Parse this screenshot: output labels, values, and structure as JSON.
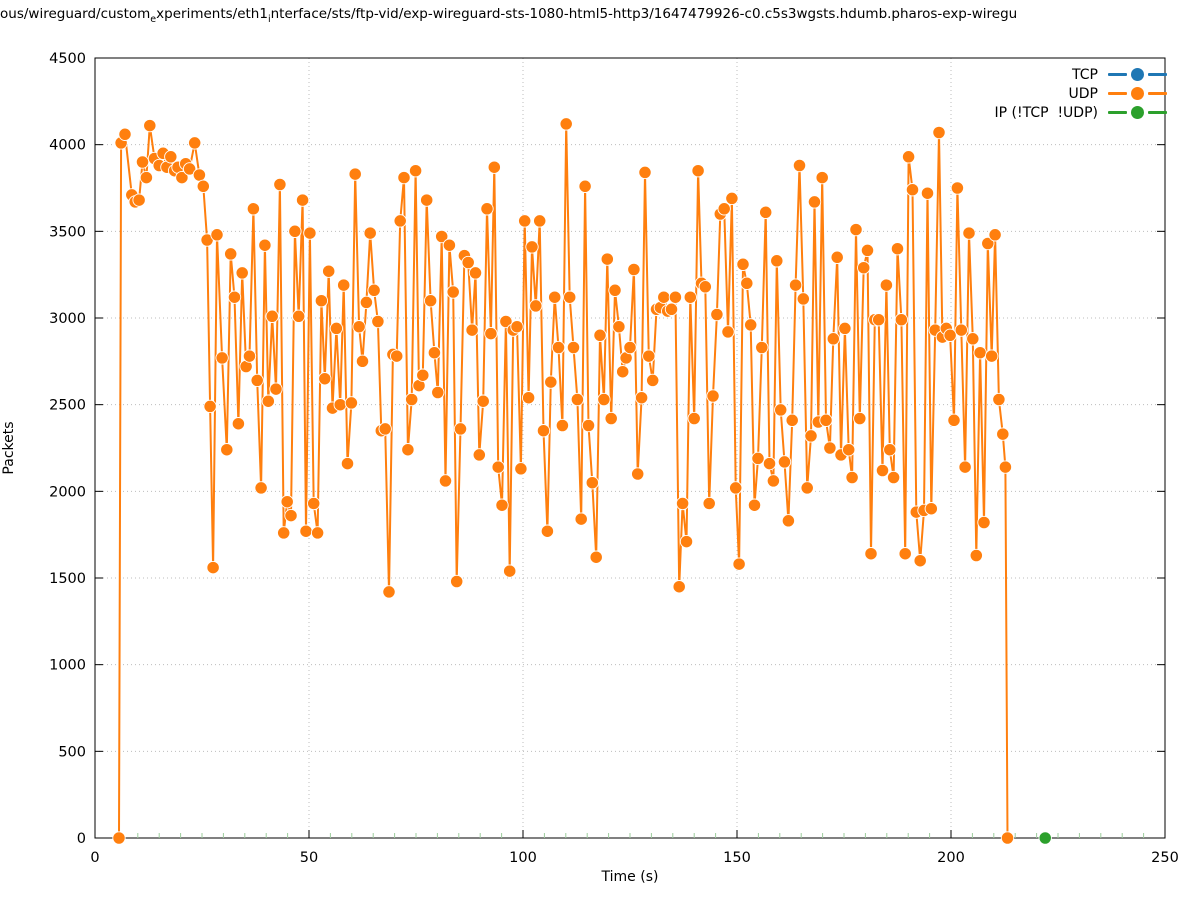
{
  "title": {
    "part1": "ous/wireguard/custom",
    "sub1": "e",
    "part2": "xperiments/eth1",
    "sub2": "i",
    "part3": "nterface/sts/ftp-vid/exp-wireguard-sts-1080-html5-http3/1647479926-c0.c5s3wgsts.hdumb.pharos-exp-wiregu"
  },
  "chart_data": {
    "type": "line",
    "markers": true,
    "xlabel": "Time (s)",
    "ylabel": "Packets",
    "xlim": [
      0,
      250
    ],
    "ylim": [
      0,
      4500
    ],
    "xticks": [
      0,
      50,
      100,
      150,
      200,
      250
    ],
    "yticks": [
      0,
      500,
      1000,
      1500,
      2000,
      2500,
      3000,
      3500,
      4000,
      4500
    ],
    "x_minor_tick_step": 5,
    "grid": true,
    "legend_position": "top-right",
    "colors": {
      "tcp": "#1f77b4",
      "udp": "#ff7f0e",
      "ip": "#2ca02c",
      "grid": "#bdbdbd",
      "minor_tick": "#9ccc9c",
      "axis": "#000000"
    },
    "series": [
      {
        "name": "TCP",
        "color": "#1f77b4",
        "points": []
      },
      {
        "name": "UDP",
        "color": "#ff7f0e",
        "points": [
          [
            5.6,
            0
          ],
          [
            6.1,
            4010
          ],
          [
            7.0,
            4060
          ],
          [
            8.6,
            3710
          ],
          [
            9.4,
            3670
          ],
          [
            10.3,
            3680
          ],
          [
            11.1,
            3900
          ],
          [
            12.0,
            3810
          ],
          [
            12.8,
            4110
          ],
          [
            13.9,
            3920
          ],
          [
            15.0,
            3880
          ],
          [
            15.9,
            3950
          ],
          [
            16.8,
            3870
          ],
          [
            17.7,
            3930
          ],
          [
            18.6,
            3850
          ],
          [
            19.4,
            3870
          ],
          [
            20.3,
            3810
          ],
          [
            21.2,
            3890
          ],
          [
            22.1,
            3860
          ],
          [
            23.3,
            4010
          ],
          [
            24.4,
            3825
          ],
          [
            25.3,
            3760
          ],
          [
            26.2,
            3450
          ],
          [
            26.9,
            2490
          ],
          [
            27.6,
            1560
          ],
          [
            28.5,
            3480
          ],
          [
            29.7,
            2770
          ],
          [
            30.8,
            2240
          ],
          [
            31.7,
            3370
          ],
          [
            32.6,
            3120
          ],
          [
            33.5,
            2390
          ],
          [
            34.4,
            3260
          ],
          [
            35.3,
            2720
          ],
          [
            36.1,
            2780
          ],
          [
            37.0,
            3630
          ],
          [
            37.9,
            2640
          ],
          [
            38.8,
            2020
          ],
          [
            39.7,
            3420
          ],
          [
            40.5,
            2520
          ],
          [
            41.4,
            3010
          ],
          [
            42.3,
            2590
          ],
          [
            43.2,
            3770
          ],
          [
            44.1,
            1760
          ],
          [
            44.9,
            1940
          ],
          [
            45.8,
            1860
          ],
          [
            46.7,
            3500
          ],
          [
            47.6,
            3010
          ],
          [
            48.5,
            3680
          ],
          [
            49.3,
            1770
          ],
          [
            50.2,
            3490
          ],
          [
            51.1,
            1930
          ],
          [
            52.0,
            1760
          ],
          [
            52.9,
            3100
          ],
          [
            53.7,
            2650
          ],
          [
            54.6,
            3270
          ],
          [
            55.5,
            2480
          ],
          [
            56.4,
            2940
          ],
          [
            57.3,
            2500
          ],
          [
            58.1,
            3190
          ],
          [
            59.0,
            2160
          ],
          [
            59.9,
            2510
          ],
          [
            60.8,
            3830
          ],
          [
            61.7,
            2950
          ],
          [
            62.5,
            2750
          ],
          [
            63.4,
            3090
          ],
          [
            64.3,
            3490
          ],
          [
            65.2,
            3160
          ],
          [
            66.1,
            2980
          ],
          [
            66.9,
            2350
          ],
          [
            67.8,
            2360
          ],
          [
            68.7,
            1420
          ],
          [
            69.6,
            2790
          ],
          [
            70.5,
            2780
          ],
          [
            71.3,
            3560
          ],
          [
            72.2,
            3810
          ],
          [
            73.1,
            2240
          ],
          [
            74.0,
            2530
          ],
          [
            74.9,
            3850
          ],
          [
            75.7,
            2610
          ],
          [
            76.6,
            2670
          ],
          [
            77.5,
            3680
          ],
          [
            78.4,
            3100
          ],
          [
            79.3,
            2800
          ],
          [
            80.1,
            2570
          ],
          [
            81.0,
            3470
          ],
          [
            81.9,
            2060
          ],
          [
            82.8,
            3420
          ],
          [
            83.7,
            3150
          ],
          [
            84.5,
            1480
          ],
          [
            85.4,
            2360
          ],
          [
            86.3,
            3360
          ],
          [
            87.2,
            3320
          ],
          [
            88.1,
            2930
          ],
          [
            88.9,
            3260
          ],
          [
            89.8,
            2210
          ],
          [
            90.7,
            2520
          ],
          [
            91.6,
            3630
          ],
          [
            92.5,
            2910
          ],
          [
            93.3,
            3870
          ],
          [
            94.2,
            2140
          ],
          [
            95.1,
            1920
          ],
          [
            96.0,
            2980
          ],
          [
            96.9,
            1540
          ],
          [
            97.7,
            2930
          ],
          [
            98.6,
            2950
          ],
          [
            99.5,
            2130
          ],
          [
            100.4,
            3560
          ],
          [
            101.3,
            2540
          ],
          [
            102.1,
            3410
          ],
          [
            103.0,
            3070
          ],
          [
            103.9,
            3560
          ],
          [
            104.8,
            2350
          ],
          [
            105.7,
            1770
          ],
          [
            106.5,
            2630
          ],
          [
            107.4,
            3120
          ],
          [
            108.3,
            2830
          ],
          [
            109.2,
            2380
          ],
          [
            110.1,
            4120
          ],
          [
            110.9,
            3120
          ],
          [
            111.8,
            2830
          ],
          [
            112.7,
            2530
          ],
          [
            113.6,
            1840
          ],
          [
            114.5,
            3760
          ],
          [
            115.3,
            2380
          ],
          [
            116.2,
            2050
          ],
          [
            117.1,
            1620
          ],
          [
            118.0,
            2900
          ],
          [
            118.9,
            2530
          ],
          [
            119.7,
            3340
          ],
          [
            120.6,
            2420
          ],
          [
            121.5,
            3160
          ],
          [
            122.4,
            2950
          ],
          [
            123.3,
            2690
          ],
          [
            124.1,
            2770
          ],
          [
            125.0,
            2830
          ],
          [
            125.9,
            3280
          ],
          [
            126.8,
            2100
          ],
          [
            127.7,
            2540
          ],
          [
            128.5,
            3840
          ],
          [
            129.4,
            2780
          ],
          [
            130.3,
            2640
          ],
          [
            131.2,
            3050
          ],
          [
            132.1,
            3060
          ],
          [
            132.9,
            3120
          ],
          [
            133.8,
            3040
          ],
          [
            134.7,
            3050
          ],
          [
            135.6,
            3120
          ],
          [
            136.5,
            1450
          ],
          [
            137.3,
            1930
          ],
          [
            138.2,
            1710
          ],
          [
            139.1,
            3120
          ],
          [
            140.0,
            2420
          ],
          [
            140.9,
            3850
          ],
          [
            141.7,
            3200
          ],
          [
            142.6,
            3180
          ],
          [
            143.5,
            1930
          ],
          [
            144.4,
            2550
          ],
          [
            145.3,
            3020
          ],
          [
            146.1,
            3600
          ],
          [
            147.0,
            3630
          ],
          [
            147.9,
            2920
          ],
          [
            148.8,
            3690
          ],
          [
            149.7,
            2020
          ],
          [
            150.5,
            1580
          ],
          [
            151.4,
            3310
          ],
          [
            152.3,
            3200
          ],
          [
            153.2,
            2960
          ],
          [
            154.1,
            1920
          ],
          [
            154.9,
            2190
          ],
          [
            155.8,
            2830
          ],
          [
            156.7,
            3610
          ],
          [
            157.6,
            2160
          ],
          [
            158.5,
            2060
          ],
          [
            159.3,
            3330
          ],
          [
            160.2,
            2470
          ],
          [
            161.1,
            2170
          ],
          [
            162.0,
            1830
          ],
          [
            162.9,
            2410
          ],
          [
            163.7,
            3190
          ],
          [
            164.6,
            3880
          ],
          [
            165.5,
            3110
          ],
          [
            166.4,
            2020
          ],
          [
            167.3,
            2320
          ],
          [
            168.1,
            3670
          ],
          [
            169.0,
            2400
          ],
          [
            169.9,
            3810
          ],
          [
            170.8,
            2410
          ],
          [
            171.7,
            2250
          ],
          [
            172.5,
            2880
          ],
          [
            173.4,
            3350
          ],
          [
            174.3,
            2210
          ],
          [
            175.2,
            2940
          ],
          [
            176.1,
            2240
          ],
          [
            176.9,
            2080
          ],
          [
            177.8,
            3510
          ],
          [
            178.7,
            2420
          ],
          [
            179.6,
            3290
          ],
          [
            180.5,
            3390
          ],
          [
            181.3,
            1640
          ],
          [
            182.2,
            2990
          ],
          [
            183.1,
            2990
          ],
          [
            184.0,
            2120
          ],
          [
            184.9,
            3190
          ],
          [
            185.7,
            2240
          ],
          [
            186.6,
            2080
          ],
          [
            187.5,
            3400
          ],
          [
            188.4,
            2990
          ],
          [
            189.3,
            1640
          ],
          [
            190.1,
            3930
          ],
          [
            191.0,
            3740
          ],
          [
            191.9,
            1880
          ],
          [
            192.8,
            1600
          ],
          [
            193.7,
            1890
          ],
          [
            194.5,
            3720
          ],
          [
            195.4,
            1900
          ],
          [
            196.3,
            2930
          ],
          [
            197.2,
            4070
          ],
          [
            198.0,
            2890
          ],
          [
            198.9,
            2940
          ],
          [
            199.8,
            2900
          ],
          [
            200.7,
            2410
          ],
          [
            201.5,
            3750
          ],
          [
            202.4,
            2930
          ],
          [
            203.3,
            2140
          ],
          [
            204.2,
            3490
          ],
          [
            205.1,
            2880
          ],
          [
            205.9,
            1630
          ],
          [
            206.8,
            2800
          ],
          [
            207.7,
            1820
          ],
          [
            208.6,
            3430
          ],
          [
            209.5,
            2780
          ],
          [
            210.3,
            3480
          ],
          [
            211.2,
            2530
          ],
          [
            212.1,
            2330
          ],
          [
            212.7,
            2140
          ],
          [
            213.2,
            0
          ]
        ]
      },
      {
        "name": "IP (!TCP  !UDP)",
        "color": "#2ca02c",
        "points": [
          [
            222,
            0
          ]
        ]
      }
    ]
  }
}
